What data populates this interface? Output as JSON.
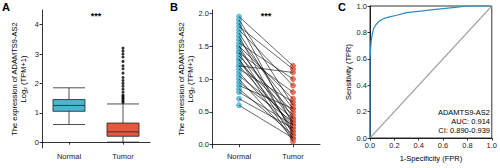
{
  "chart_data": [
    {
      "panel": "A",
      "type": "boxplot",
      "categories": [
        "Normal",
        "Tumor"
      ],
      "boxes": [
        [
          0.6,
          1.05,
          1.25,
          1.45,
          1.85
        ],
        [
          0,
          0.2,
          0.35,
          0.65,
          1.3
        ]
      ],
      "outliers": [
        [],
        [
          1.35,
          1.4,
          1.45,
          1.5,
          1.55,
          1.6,
          1.7,
          1.8,
          1.9,
          2.0,
          2.1,
          2.2,
          2.35,
          2.5,
          2.6,
          2.75,
          2.9,
          3.0,
          3.1,
          3.2
        ]
      ],
      "colors": [
        "#4db4cf",
        "#e5573f"
      ],
      "y_label": "The expression of ADAMTS9-AS2\nLog₂ (TPM+1)",
      "ylim": [
        -0.2,
        4.5
      ],
      "yticks": [
        0,
        1,
        2,
        3,
        4
      ],
      "annotation": "***",
      "grid": false
    },
    {
      "panel": "B",
      "type": "paired",
      "categories": [
        "Normal",
        "Tumor"
      ],
      "pairs": [
        [
          1.95,
          1.2
        ],
        [
          1.9,
          0.6
        ],
        [
          1.85,
          0.3
        ],
        [
          1.8,
          1.15
        ],
        [
          1.75,
          0.9
        ],
        [
          1.7,
          0.4
        ],
        [
          1.65,
          0.15
        ],
        [
          1.6,
          0.55
        ],
        [
          1.55,
          1.0
        ],
        [
          1.5,
          0.2
        ],
        [
          1.5,
          0.7
        ],
        [
          1.45,
          0.35
        ],
        [
          1.4,
          0.1
        ],
        [
          1.4,
          0.8
        ],
        [
          1.35,
          0.5
        ],
        [
          1.3,
          0.25
        ],
        [
          1.3,
          0.05
        ],
        [
          1.25,
          0.45
        ],
        [
          1.2,
          1.1
        ],
        [
          1.2,
          0.3
        ],
        [
          1.15,
          0.65
        ],
        [
          1.1,
          0.2
        ],
        [
          1.05,
          0.4
        ],
        [
          1.0,
          0.1
        ],
        [
          0.95,
          0.35
        ],
        [
          0.9,
          0.55
        ],
        [
          0.85,
          0.15
        ],
        [
          0.8,
          0.3
        ],
        [
          0.7,
          0.25
        ],
        [
          0.6,
          0.1
        ]
      ],
      "colors": [
        "#4db4cf",
        "#e5573f"
      ],
      "color": "#000000",
      "y_label": "The expression of ADAMTS9-AS2\nLog₂ (TPM+1)",
      "ylim": [
        -0.05,
        2.05
      ],
      "yticks": [
        {
          "value": 0,
          "label": "0.0"
        },
        0.5,
        {
          "value": 1,
          "label": "1.0"
        },
        1.5,
        {
          "value": 2,
          "label": "2.0"
        }
      ],
      "annotation": "***",
      "grid": false
    },
    {
      "panel": "C",
      "type": "line",
      "series": [
        {
          "x": [
            0,
            0,
            0.005,
            0.01,
            0.02,
            0.03,
            0.05,
            0.07,
            0.1,
            0.13,
            0.17,
            0.22,
            0.3,
            0.4,
            0.5,
            0.6,
            0.7,
            0.8,
            1
          ],
          "values": [
            0,
            0.6,
            0.68,
            0.74,
            0.79,
            0.83,
            0.86,
            0.88,
            0.9,
            0.91,
            0.92,
            0.93,
            0.95,
            0.96,
            0.97,
            0.98,
            0.99,
            1,
            1
          ],
          "color": "#2e8bc0",
          "line_style": "solid"
        },
        {
          "x": [
            0,
            1
          ],
          "values": [
            0,
            1
          ],
          "color": "#a6a6a6",
          "line_style": "solid"
        }
      ],
      "x_label": "1-Specificity (FPR)",
      "y_label": "Sensitivity (TPR)",
      "xlim": [
        0,
        1
      ],
      "ylim": [
        0,
        1
      ],
      "xticks": [
        {
          "value": 0,
          "label": "0.0"
        },
        0.2,
        0.4,
        0.6,
        0.8,
        {
          "value": 1,
          "label": "1.0"
        }
      ],
      "yticks": [
        {
          "value": 0,
          "label": "0.0"
        },
        0.2,
        0.4,
        0.6,
        0.8,
        {
          "value": 1,
          "label": "1.0"
        }
      ],
      "annotations": [
        "ADAMTS9-AS2",
        "AUC: 0.914",
        "CI: 0.890-0.939"
      ],
      "grid": false
    }
  ]
}
